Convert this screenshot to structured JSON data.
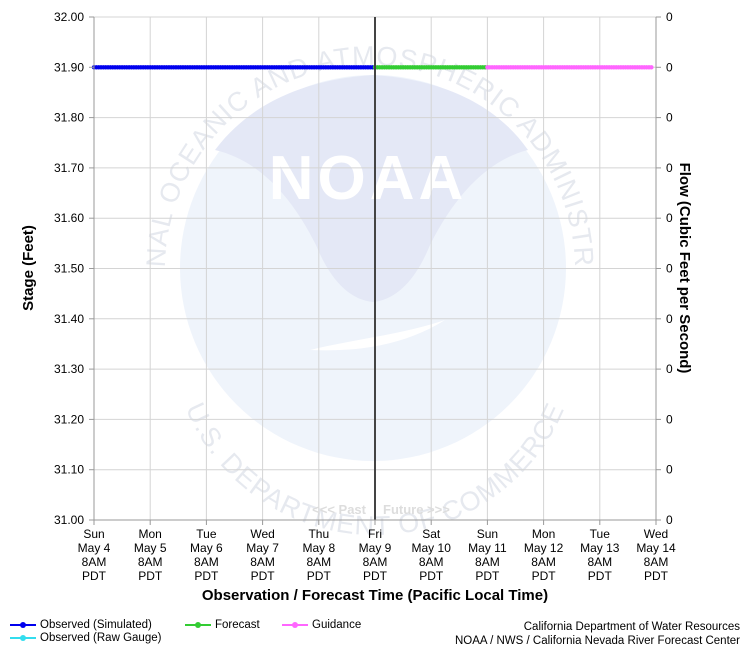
{
  "chart_data": {
    "type": "line",
    "title": "",
    "xlabel": "Observation / Forecast Time (Pacific Local Time)",
    "ylabel": "Stage (Feet)",
    "y2label": "Flow (Cubic Feet per Second)",
    "ylim": [
      31.0,
      32.0
    ],
    "yticks": [
      "31.00",
      "31.10",
      "31.20",
      "31.30",
      "31.40",
      "31.50",
      "31.60",
      "31.70",
      "31.80",
      "31.90",
      "32.00"
    ],
    "yticks_right": [
      "0",
      "0",
      "0",
      "0",
      "0",
      "0",
      "0",
      "0",
      "0",
      "0",
      "0"
    ],
    "xlim": [
      0,
      10
    ],
    "x_ticks": [
      {
        "day": "Sun",
        "date": "May 4",
        "time": "8AM",
        "tz": "PDT"
      },
      {
        "day": "Mon",
        "date": "May 5",
        "time": "8AM",
        "tz": "PDT"
      },
      {
        "day": "Tue",
        "date": "May 6",
        "time": "8AM",
        "tz": "PDT"
      },
      {
        "day": "Wed",
        "date": "May 7",
        "time": "8AM",
        "tz": "PDT"
      },
      {
        "day": "Thu",
        "date": "May 8",
        "time": "8AM",
        "tz": "PDT"
      },
      {
        "day": "Fri",
        "date": "May 9",
        "time": "8AM",
        "tz": "PDT"
      },
      {
        "day": "Sat",
        "date": "May 10",
        "time": "8AM",
        "tz": "PDT"
      },
      {
        "day": "Sun",
        "date": "May 11",
        "time": "8AM",
        "tz": "PDT"
      },
      {
        "day": "Mon",
        "date": "May 12",
        "time": "8AM",
        "tz": "PDT"
      },
      {
        "day": "Tue",
        "date": "May 13",
        "time": "8AM",
        "tz": "PDT"
      },
      {
        "day": "Wed",
        "date": "May 14",
        "time": "8AM",
        "tz": "PDT"
      }
    ],
    "now_x": 5,
    "past_label": "<<< Past",
    "future_label": "Future >>>",
    "grid": true,
    "series": [
      {
        "name": "Observed (Simulated)",
        "color": "#0000ee",
        "x_start": 0,
        "x_end": 5,
        "y": 31.9
      },
      {
        "name": "Forecast",
        "color": "#33cc33",
        "x_start": 5,
        "x_end": 7,
        "y": 31.9
      },
      {
        "name": "Guidance",
        "color": "#ff66ff",
        "x_start": 7,
        "x_end": 9.95,
        "y": 31.9
      }
    ]
  },
  "watermark": {
    "logo_text": "NOAA",
    "ring_top": "NATIONAL OCEANIC AND ATMOSPHERIC ADMINISTRATION",
    "ring_bottom": "U.S. DEPARTMENT OF COMMERCE"
  },
  "legend": {
    "observed_simulated": {
      "label": "Observed (Simulated)",
      "color": "#0000ee"
    },
    "observed_raw": {
      "label": "Observed (Raw Gauge)",
      "color": "#33ddee"
    },
    "forecast": {
      "label": "Forecast",
      "color": "#33cc33"
    },
    "guidance": {
      "label": "Guidance",
      "color": "#ff66ff"
    }
  },
  "credits": {
    "line1": "California Department of Water Resources",
    "line2": "NOAA / NWS / California Nevada River Forecast Center"
  }
}
